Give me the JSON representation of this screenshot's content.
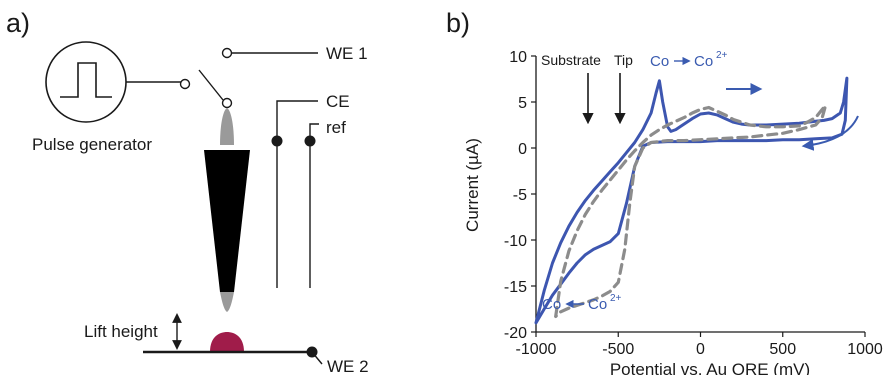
{
  "panel_a": {
    "label": "a)",
    "pulse_generator": "Pulse generator",
    "we1": "WE 1",
    "ce": "CE",
    "ref": "ref",
    "lift_height": "Lift height",
    "we2": "WE 2",
    "colors": {
      "tip": "#000000",
      "tip_ends": "#9a9a9a",
      "droplet": "#a01c4a"
    }
  },
  "panel_b": {
    "label": "b)",
    "annotations": {
      "substrate": "Substrate",
      "tip": "Tip",
      "ox_left": "Co",
      "ox_right": "Co",
      "ox_sup": "2+",
      "red_left": "Co",
      "red_right": "Co",
      "red_sup": "2+"
    },
    "colors": {
      "solid": "#3d56b0",
      "dashed": "#8c8c8c",
      "arrow": "#3a5bb0"
    }
  },
  "chart_data": {
    "type": "line",
    "xlabel": "Potential vs. Au QRE (mV)",
    "ylabel": "Current (µA)",
    "xlim": [
      -1000,
      1000
    ],
    "ylim": [
      -20,
      10
    ],
    "xticks": [
      -1000,
      -500,
      0,
      500,
      1000
    ],
    "yticks": [
      10,
      5,
      0,
      -5,
      -10,
      -15,
      -20
    ],
    "xtick_labels": [
      "-1000",
      "-500",
      "0",
      "500",
      "1000"
    ],
    "ytick_labels": [
      "10",
      "5",
      "0",
      "-5",
      "-10",
      "-15",
      "-20"
    ],
    "grid": false,
    "legend": "none",
    "series": [
      {
        "style": "solid",
        "color": "#3d56b0",
        "x": [
          -1000,
          -950,
          -900,
          -850,
          -800,
          -750,
          -700,
          -650,
          -600,
          -550,
          -500,
          -450,
          -400,
          -350,
          -300,
          -270,
          -250,
          -230,
          -200,
          -180,
          -150,
          -100,
          -50,
          0,
          50,
          100,
          150,
          200,
          250,
          300,
          400,
          500,
          600,
          700,
          750,
          800,
          850,
          870,
          890,
          880,
          860,
          800,
          700,
          600,
          500,
          400,
          300,
          200,
          100,
          0,
          -100,
          -200,
          -300,
          -350,
          -400,
          -450,
          -500,
          -550,
          -600,
          -650,
          -700,
          -750,
          -800,
          -850,
          -900,
          -950,
          -1000
        ],
        "y": [
          -19,
          -15.5,
          -12.5,
          -10.3,
          -8.5,
          -7,
          -5.7,
          -4.6,
          -3.6,
          -2.6,
          -1.6,
          -0.5,
          0.6,
          2,
          3.8,
          6,
          7.3,
          5,
          2.3,
          1.8,
          2,
          2.6,
          3.2,
          3.7,
          3.8,
          3.6,
          3.2,
          2.8,
          2.6,
          2.5,
          2.5,
          2.6,
          2.7,
          2.9,
          3,
          3.2,
          3.8,
          5,
          7.6,
          3,
          1.5,
          1.1,
          1.0,
          0.9,
          0.9,
          0.8,
          0.8,
          0.8,
          0.8,
          0.7,
          0.7,
          0.7,
          0.6,
          0.2,
          -2,
          -6,
          -9.3,
          -10.2,
          -10.6,
          -11,
          -11.6,
          -12.5,
          -13.6,
          -14.8,
          -16,
          -17.5,
          -19
        ]
      },
      {
        "style": "dashed",
        "color": "#8c8c8c",
        "x": [
          -880,
          -850,
          -800,
          -750,
          -700,
          -650,
          -600,
          -550,
          -500,
          -450,
          -400,
          -350,
          -300,
          -250,
          -200,
          -150,
          -100,
          -50,
          0,
          50,
          100,
          150,
          200,
          300,
          400,
          500,
          600,
          650,
          700,
          740,
          760,
          740,
          700,
          600,
          500,
          400,
          300,
          200,
          100,
          0,
          -100,
          -200,
          -300,
          -350,
          -400,
          -430,
          -460,
          -500,
          -550,
          -600,
          -650,
          -700,
          -750,
          -800,
          -850,
          -880
        ],
        "y": [
          -18.3,
          -14.5,
          -11.2,
          -9,
          -7.2,
          -5.8,
          -4.6,
          -3.5,
          -2.4,
          -1.3,
          -0.3,
          0.6,
          1.4,
          2,
          2.5,
          2.9,
          3.3,
          3.8,
          4.2,
          4.4,
          4.0,
          3.6,
          3.1,
          2.5,
          2.3,
          2.3,
          2.4,
          2.8,
          3.3,
          4.2,
          4.6,
          3.3,
          2.5,
          2.0,
          1.6,
          1.4,
          1.2,
          1.1,
          1.0,
          0.9,
          0.8,
          0.8,
          0.6,
          0,
          -2,
          -6,
          -11,
          -14.6,
          -15.6,
          -16.1,
          -16.5,
          -16.8,
          -17.1,
          -17.4,
          -17.8,
          -18.3
        ]
      }
    ]
  }
}
